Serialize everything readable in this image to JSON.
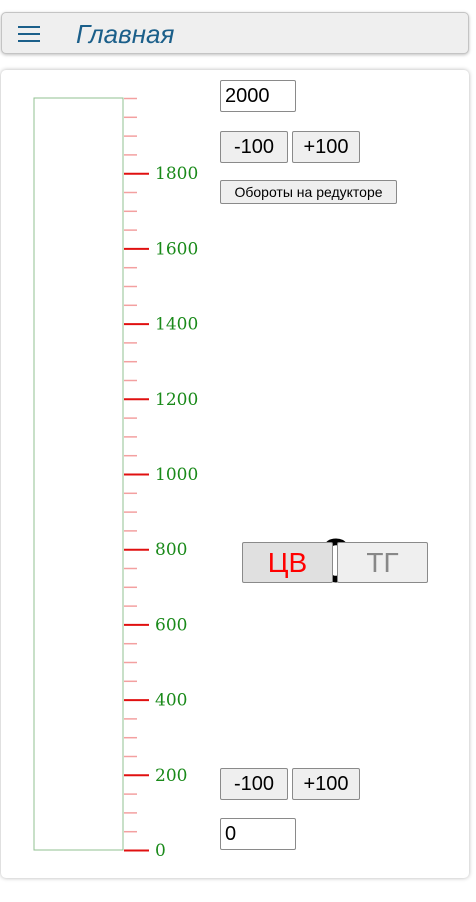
{
  "header": {
    "title": "Главная",
    "menu_icon": "hamburger-menu-icon"
  },
  "gauge": {
    "min": 0,
    "max": 2000,
    "current_value": 0,
    "major_step": 200,
    "minor_step": 50,
    "labels": [
      "0",
      "200",
      "400",
      "600",
      "800",
      "1000",
      "1200",
      "1400",
      "1600",
      "1800"
    ],
    "label_color": "#1a8a1a",
    "major_tick_color": "#e01010",
    "minor_tick_color": "#f3a0a0",
    "border_color": "#90c090"
  },
  "controls": {
    "top_value": "2000",
    "top_minus": "-100",
    "top_plus": "+100",
    "reducer_label": "Обороты на редукторе",
    "display_value": "0",
    "mode_cv": "ЦВ",
    "mode_tg": "ТГ",
    "mode_cv_color": "#ff0000",
    "mode_tg_color": "#888888",
    "bottom_minus": "-100",
    "bottom_plus": "+100",
    "bottom_value": "0"
  }
}
